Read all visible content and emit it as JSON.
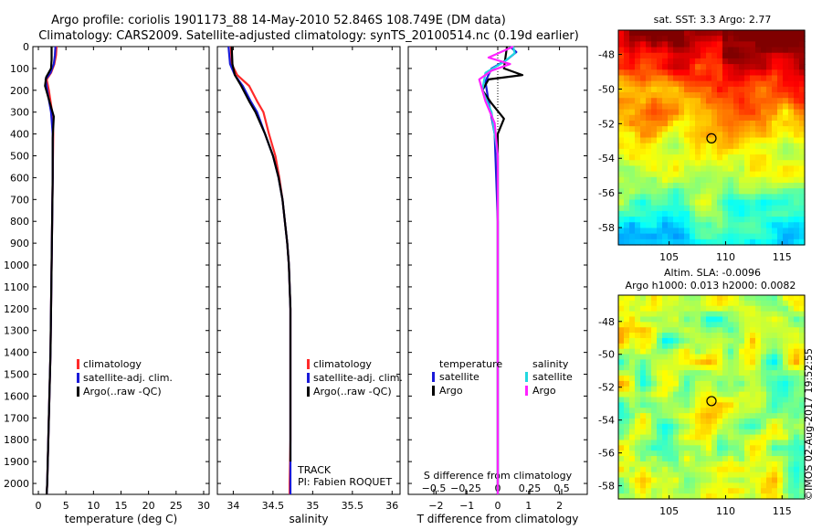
{
  "header": {
    "line1": "Argo profile: coriolis 1901173_88 14-May-2010 52.846S 108.749E (DM data)",
    "line2": "Climatology: CARS2009. Satellite-adjusted climatology: synTS_20100514.nc (0.19d earlier)"
  },
  "watermark": "©IMOS 02-Aug-2017 19:52:55",
  "colors": {
    "climatology": "#ff2a2a",
    "satellite": "#1a1ad8",
    "argo": "#000000",
    "s_satellite": "#22d8e0",
    "s_argo": "#ff22ff"
  },
  "track": {
    "label": "TRACK",
    "pi": "PI: Fabien ROQUET"
  },
  "chart_data": [
    {
      "type": "line",
      "title": "",
      "xlabel": "temperature (deg C)",
      "ylabel": "",
      "xlim": [
        -1,
        31
      ],
      "ylim": [
        2050,
        0
      ],
      "xticks": [
        0,
        5,
        10,
        15,
        20,
        25,
        30
      ],
      "yticks": [
        0,
        100,
        200,
        300,
        400,
        500,
        600,
        700,
        800,
        900,
        1000,
        1100,
        1200,
        1300,
        1400,
        1500,
        1600,
        1700,
        1800,
        1900,
        2000
      ],
      "legend": [
        "climatology",
        "satellite-adj. clim.",
        "Argo(..raw -QC)"
      ],
      "series": [
        {
          "name": "climatology",
          "color_key": "climatology",
          "points": [
            [
              3.3,
              0
            ],
            [
              3.2,
              40
            ],
            [
              2.9,
              80
            ],
            [
              2.3,
              120
            ],
            [
              1.5,
              150
            ],
            [
              1.9,
              200
            ],
            [
              2.5,
              300
            ],
            [
              2.7,
              400
            ],
            [
              2.6,
              600
            ],
            [
              2.5,
              800
            ],
            [
              2.4,
              1000
            ],
            [
              2.3,
              1200
            ],
            [
              2.2,
              1400
            ],
            [
              2.0,
              1600
            ],
            [
              1.8,
              1800
            ],
            [
              1.6,
              2000
            ],
            [
              1.5,
              2050
            ]
          ]
        },
        {
          "name": "satellite-adj. clim.",
          "color_key": "satellite",
          "points": [
            [
              3.1,
              0
            ],
            [
              3.0,
              40
            ],
            [
              2.8,
              80
            ],
            [
              2.2,
              120
            ],
            [
              1.3,
              150
            ],
            [
              1.6,
              200
            ],
            [
              2.3,
              300
            ],
            [
              2.6,
              400
            ],
            [
              2.6,
              600
            ],
            [
              2.5,
              800
            ],
            [
              2.4,
              1000
            ],
            [
              2.3,
              1200
            ],
            [
              2.2,
              1400
            ],
            [
              2.0,
              1600
            ],
            [
              1.8,
              1800
            ],
            [
              1.6,
              2000
            ],
            [
              1.5,
              2050
            ]
          ]
        },
        {
          "name": "Argo(..raw -QC)",
          "color_key": "argo",
          "points": [
            [
              2.4,
              0
            ],
            [
              2.4,
              60
            ],
            [
              2.3,
              100
            ],
            [
              1.4,
              140
            ],
            [
              1.2,
              180
            ],
            [
              2.0,
              250
            ],
            [
              2.8,
              320
            ],
            [
              2.6,
              420
            ],
            [
              2.6,
              600
            ],
            [
              2.5,
              800
            ],
            [
              2.4,
              1000
            ],
            [
              2.3,
              1200
            ],
            [
              2.2,
              1400
            ],
            [
              2.0,
              1600
            ],
            [
              1.8,
              1800
            ],
            [
              1.6,
              2000
            ],
            [
              1.5,
              2050
            ]
          ]
        }
      ]
    },
    {
      "type": "line",
      "title": "",
      "xlabel": "salinity",
      "ylabel": "",
      "xlim": [
        33.8,
        36.1
      ],
      "ylim": [
        2050,
        0
      ],
      "xticks": [
        34,
        34.5,
        35,
        35.5,
        36
      ],
      "xticklabels": [
        "34",
        "34.5",
        "35",
        "35.5",
        "36"
      ],
      "legend": [
        "climatology",
        "satellite-adj. clim.",
        "Argo(..raw -QC)"
      ],
      "series": [
        {
          "name": "climatology",
          "color_key": "climatology",
          "points": [
            [
              33.97,
              0
            ],
            [
              33.98,
              80
            ],
            [
              34.05,
              130
            ],
            [
              34.2,
              180
            ],
            [
              34.3,
              250
            ],
            [
              34.38,
              300
            ],
            [
              34.45,
              400
            ],
            [
              34.53,
              500
            ],
            [
              34.58,
              600
            ],
            [
              34.62,
              700
            ],
            [
              34.65,
              800
            ],
            [
              34.68,
              900
            ],
            [
              34.7,
              1000
            ],
            [
              34.72,
              1200
            ],
            [
              34.72,
              1400
            ],
            [
              34.72,
              1600
            ],
            [
              34.72,
              1800
            ],
            [
              34.71,
              2000
            ],
            [
              34.71,
              2050
            ]
          ]
        },
        {
          "name": "satellite-adj. clim.",
          "color_key": "satellite",
          "points": [
            [
              33.94,
              0
            ],
            [
              33.96,
              80
            ],
            [
              34.02,
              130
            ],
            [
              34.12,
              180
            ],
            [
              34.22,
              250
            ],
            [
              34.3,
              300
            ],
            [
              34.4,
              400
            ],
            [
              34.5,
              500
            ],
            [
              34.57,
              600
            ],
            [
              34.62,
              700
            ],
            [
              34.65,
              800
            ],
            [
              34.68,
              900
            ],
            [
              34.7,
              1000
            ],
            [
              34.72,
              1200
            ],
            [
              34.72,
              1400
            ],
            [
              34.72,
              1600
            ],
            [
              34.72,
              1800
            ],
            [
              34.72,
              2000
            ],
            [
              34.72,
              2050
            ]
          ]
        },
        {
          "name": "Argo(..raw -QC)",
          "color_key": "argo",
          "points": [
            [
              33.98,
              0
            ],
            [
              33.99,
              80
            ],
            [
              34.02,
              130
            ],
            [
              34.1,
              180
            ],
            [
              34.2,
              250
            ],
            [
              34.28,
              300
            ],
            [
              34.4,
              400
            ],
            [
              34.5,
              500
            ],
            [
              34.57,
              600
            ],
            [
              34.62,
              700
            ],
            [
              34.65,
              800
            ],
            [
              34.68,
              900
            ],
            [
              34.7,
              1000
            ],
            [
              34.72,
              1200
            ],
            [
              34.72,
              1400
            ],
            [
              34.72,
              1600
            ],
            [
              34.72,
              1800
            ],
            [
              34.72,
              1900
            ]
          ]
        }
      ]
    },
    {
      "type": "line",
      "title": "",
      "xlabel": "T difference from climatology",
      "xlabel_top": "S difference from climatology",
      "ylabel": "",
      "xlim": [
        -2.9,
        2.9
      ],
      "ylim": [
        2050,
        0
      ],
      "xticks": [
        -2,
        -1,
        0,
        1,
        2
      ],
      "xticklabels": [
        "−2",
        "−1",
        "0",
        "1",
        "2"
      ],
      "s_ticks": [
        -0.5,
        -0.25,
        0,
        0.25,
        0.5
      ],
      "s_ticklabels": [
        "−0.5",
        "−0.25",
        "0",
        "0.25",
        "0.5"
      ],
      "legend_titles": [
        "temperature",
        "salinity"
      ],
      "legend": [
        "satellite",
        "Argo",
        "satellite",
        "Argo"
      ],
      "series": [
        {
          "name": "T satellite",
          "color_key": "satellite",
          "points": [
            [
              0.4,
              0
            ],
            [
              0.6,
              25
            ],
            [
              0.3,
              60
            ],
            [
              -0.2,
              100
            ],
            [
              -0.4,
              160
            ],
            [
              -0.3,
              250
            ],
            [
              -0.1,
              400
            ],
            [
              -0.05,
              600
            ],
            [
              0,
              800
            ],
            [
              0,
              2050
            ]
          ]
        },
        {
          "name": "T Argo",
          "color_key": "argo",
          "points": [
            [
              0.3,
              0
            ],
            [
              0.25,
              50
            ],
            [
              0.2,
              100
            ],
            [
              0.8,
              130
            ],
            [
              -0.3,
              150
            ],
            [
              -0.5,
              200
            ],
            [
              -0.2,
              260
            ],
            [
              0.2,
              330
            ],
            [
              0,
              400
            ],
            [
              0,
              600
            ],
            [
              0,
              2050
            ]
          ]
        },
        {
          "name": "S satellite",
          "color_key": "s_satellite",
          "points": [
            [
              0.5,
              0
            ],
            [
              0.55,
              30
            ],
            [
              0.2,
              70
            ],
            [
              -0.4,
              120
            ],
            [
              -0.5,
              200
            ],
            [
              -0.2,
              300
            ],
            [
              0,
              500
            ],
            [
              0,
              2050
            ]
          ]
        },
        {
          "name": "S Argo",
          "color_key": "s_argo",
          "points": [
            [
              0.5,
              0
            ],
            [
              -0.3,
              50
            ],
            [
              0.4,
              80
            ],
            [
              -0.2,
              110
            ],
            [
              -0.6,
              150
            ],
            [
              -0.4,
              250
            ],
            [
              -0.1,
              350
            ],
            [
              0,
              500
            ],
            [
              0,
              2050
            ]
          ]
        }
      ]
    },
    {
      "type": "heatmap",
      "title": "sat. SST: 3.3 Argo: 2.77",
      "xticks": [
        105,
        110,
        115
      ],
      "yticks": [
        -48,
        -50,
        -52,
        -54,
        -56,
        -58
      ],
      "xlim": [
        100.5,
        117
      ],
      "ylim": [
        -59,
        -46.6
      ],
      "marker": {
        "lon": 108.749,
        "lat": -52.846
      }
    },
    {
      "type": "heatmap",
      "title": "Altim. SLA: -0.0096",
      "subtitle": "Argo h1000: 0.013 h2000: 0.0082",
      "xticks": [
        105,
        110,
        115
      ],
      "yticks": [
        -48,
        -50,
        -52,
        -54,
        -56,
        -58
      ],
      "xlim": [
        100.5,
        117
      ],
      "ylim": [
        -58.8,
        -46.4
      ],
      "marker": {
        "lon": 108.749,
        "lat": -52.846
      }
    }
  ]
}
